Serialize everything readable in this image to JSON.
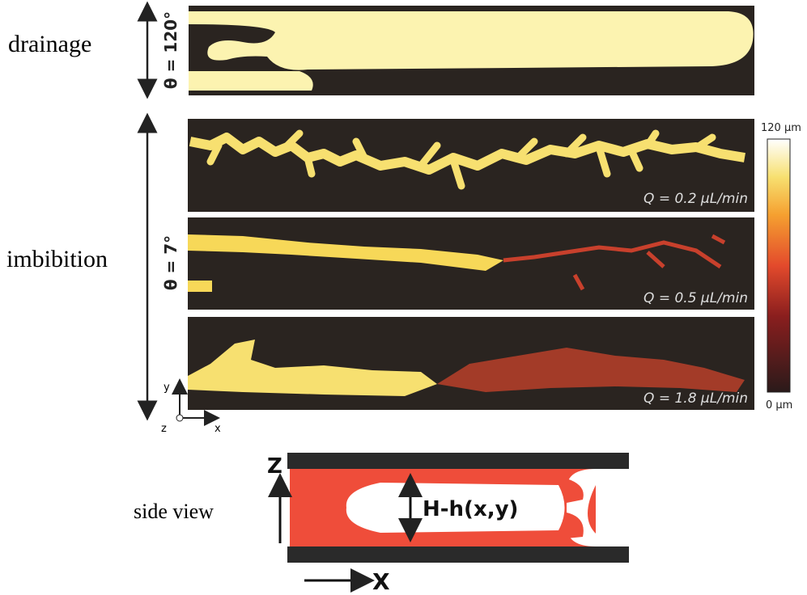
{
  "drainage": {
    "label": "drainage",
    "angle": "θ = 120°"
  },
  "imbibition": {
    "label": "imbibition",
    "angle": "θ = 7°",
    "runs": [
      {
        "rate": "Q = 0.2 μL/min"
      },
      {
        "rate": "Q = 0.5 μL/min"
      },
      {
        "rate": "Q = 1.8 μL/min"
      }
    ]
  },
  "colorbar": {
    "max_label": "120 μm",
    "min_label": "0 μm"
  },
  "axes": {
    "y": "y",
    "z": "z",
    "x": "x"
  },
  "side_view": {
    "label": "side view",
    "z_axis": "Z",
    "x_axis": "X",
    "gap": "H-h(x,y)"
  }
}
